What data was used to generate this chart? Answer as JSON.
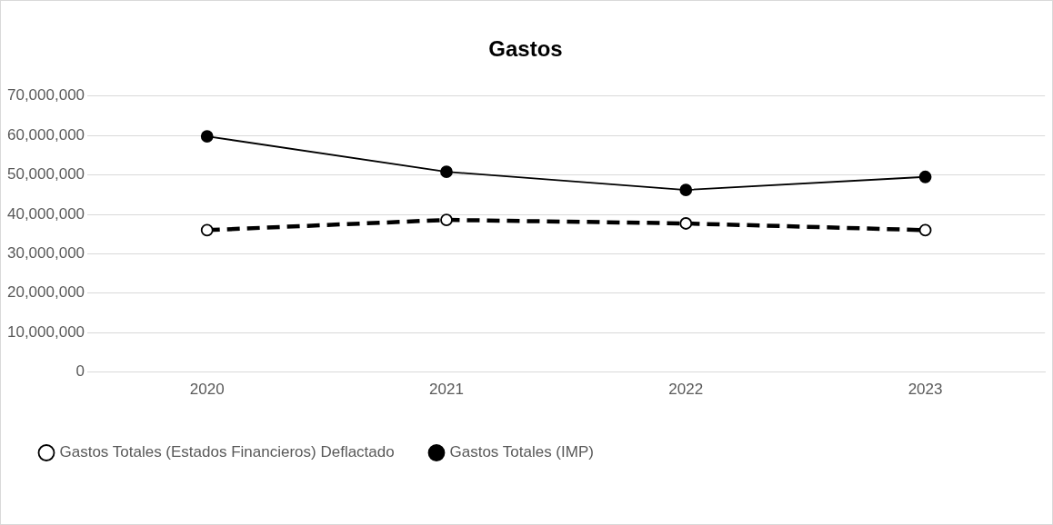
{
  "chart_data": {
    "type": "line",
    "title": "Gastos",
    "categories": [
      "2020",
      "2021",
      "2022",
      "2023"
    ],
    "series": [
      {
        "name": "Gastos Totales (Estados Financieros) Deflactado",
        "color": "#000000",
        "values": [
          36000000,
          38600000,
          37700000,
          36000000
        ],
        "marker": "circle",
        "line_style": "dashed"
      },
      {
        "name": "Gastos Totales (IMP)",
        "color": "#000000",
        "values": [
          59800000,
          50800000,
          46200000,
          49500000
        ],
        "marker": "circle",
        "line_style": "solid"
      }
    ],
    "ylim": [
      0,
      70000000
    ],
    "yticks": [
      {
        "value": 0,
        "label": "0"
      },
      {
        "value": 10000000,
        "label": "10,000,000"
      },
      {
        "value": 20000000,
        "label": "20,000,000"
      },
      {
        "value": 30000000,
        "label": "30,000,000"
      },
      {
        "value": 40000000,
        "label": "40,000,000"
      },
      {
        "value": 50000000,
        "label": "50,000,000"
      },
      {
        "value": 60000000,
        "label": "60,000,000"
      },
      {
        "value": 70000000,
        "label": "70,000,000"
      }
    ],
    "grid": "y",
    "legend": "bottom"
  }
}
